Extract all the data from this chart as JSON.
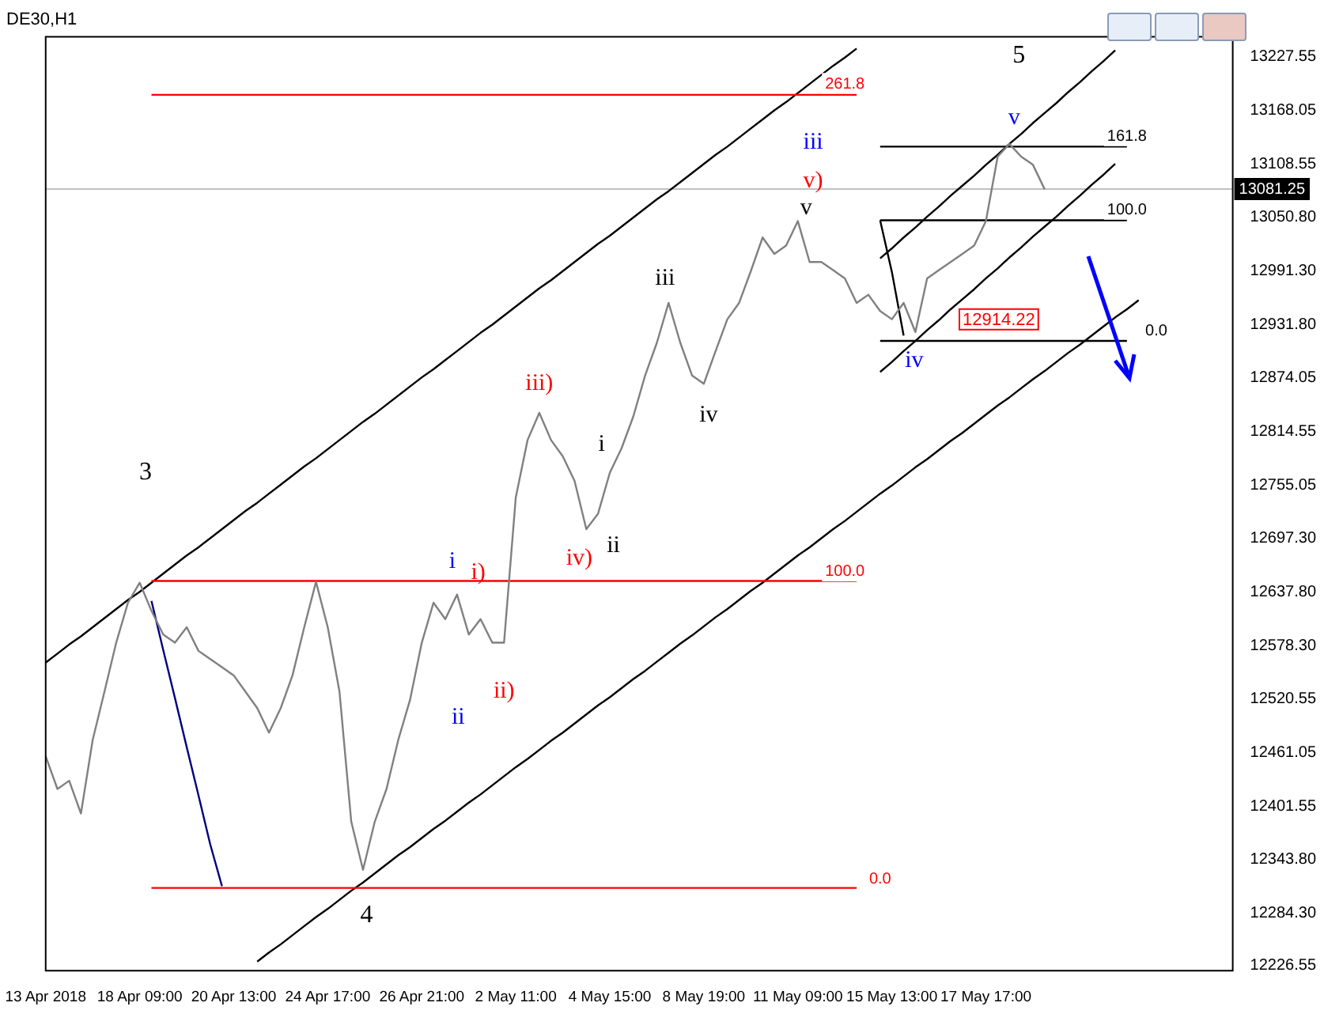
{
  "chart_data": {
    "type": "line",
    "title": "DE30,H1",
    "categories": [
      "13 Apr 2018",
      null,
      null,
      null,
      null,
      null,
      null,
      null,
      "18 Apr 09:00",
      null,
      null,
      null,
      null,
      null,
      null,
      null,
      "20 Apr 13:00",
      null,
      null,
      null,
      null,
      null,
      null,
      null,
      "24 Apr 17:00",
      null,
      null,
      null,
      null,
      null,
      null,
      null,
      "26 Apr 21:00",
      null,
      null,
      null,
      null,
      null,
      null,
      null,
      "2 May 11:00",
      null,
      null,
      null,
      null,
      null,
      null,
      null,
      "4 May 15:00",
      null,
      null,
      null,
      null,
      null,
      null,
      null,
      "8 May 19:00",
      null,
      null,
      null,
      null,
      null,
      null,
      null,
      "11 May 09:00",
      null,
      null,
      null,
      null,
      null,
      null,
      null,
      "15 May 13:00",
      null,
      null,
      null,
      null,
      null,
      null,
      null,
      "17 May 17:00",
      null,
      null,
      null,
      null,
      null,
      null,
      null,
      null,
      null,
      null,
      null,
      null,
      null,
      null,
      null,
      null,
      null,
      null,
      null,
      null,
      null
    ],
    "ylim": [
      12221,
      13249
    ],
    "yticks": [
      12226.55,
      {
        "value": 12284.3,
        "label": "12284.30"
      },
      {
        "value": 12343.8,
        "label": "12343.80"
      },
      12401.55,
      12461.05,
      12520.55,
      {
        "value": 12578.3,
        "label": "12578.30"
      },
      {
        "value": 12637.8,
        "label": "12637.80"
      },
      {
        "value": 12697.3,
        "label": "12697.30"
      },
      12755.05,
      12814.55,
      12874.05,
      {
        "value": 12931.8,
        "label": "12931.80"
      },
      {
        "value": 12991.3,
        "label": "12991.30"
      },
      {
        "value": 13050.8,
        "label": "13050.80"
      },
      13108.55,
      13168.05,
      13227.55
    ],
    "grid": false,
    "legend": false,
    "marker": "none",
    "series": [
      {
        "color": "#808080",
        "values": [
          12457,
          12421,
          12430,
          12394,
          12475,
          12528,
          12582,
          12626,
          12648,
          12617,
          12591,
          12582,
          12599,
          12573,
          12564,
          12555,
          12546,
          12528,
          12510,
          12483,
          12510,
          12546,
          12599,
          12649,
          12599,
          12528,
          12385,
          12332,
          12385,
          12421,
          12475,
          12519,
          12582,
          12626,
          12608,
          12635,
          12591,
          12608,
          12582,
          12582,
          12742,
          12805,
          12835,
          12805,
          12787,
          12760,
          12707,
          12724,
          12769,
          12796,
          12831,
          12876,
          12912,
          12956,
          12912,
          12876,
          12867,
          12903,
          12938,
          12956,
          12991,
          13028,
          13010,
          13019,
          13046,
          13001,
          13001,
          12992,
          12983,
          12956,
          12965,
          12947,
          12938,
          12956,
          12924,
          12983,
          12992,
          13001,
          13010,
          13019,
          13046,
          13117,
          13131,
          13117,
          13108,
          13081,
          null,
          null,
          null,
          null,
          null,
          null,
          null,
          null,
          null,
          null,
          null,
          null,
          null,
          null,
          null,
          null
        ]
      },
      {
        "color": "#ff0000",
        "values": [
          null,
          null,
          null,
          null,
          null,
          null,
          null,
          null,
          null,
          13185,
          13185,
          13185,
          13185,
          13185,
          13185,
          13185,
          13185,
          13185,
          13185,
          13185,
          13185,
          13185,
          13185,
          13185,
          13185,
          13185,
          13185,
          13185,
          13185,
          13185,
          13185,
          13185,
          13185,
          13185,
          13185,
          13185,
          13185,
          13185,
          13185,
          13185,
          13185,
          13185,
          13185,
          13185,
          13185,
          13185,
          13185,
          13185,
          13185,
          13185,
          13185,
          13185,
          13185,
          13185,
          13185,
          13185,
          13185,
          13185,
          13185,
          13185,
          13185,
          13185,
          13185,
          13185,
          13185,
          13185,
          13185,
          13185,
          13185,
          13185,
          null,
          null,
          null,
          null,
          null,
          null,
          null,
          null,
          null,
          null,
          null,
          null,
          null,
          null,
          null,
          null,
          null,
          null,
          null,
          null,
          null,
          null,
          null,
          null,
          null,
          null,
          null,
          null,
          null,
          null,
          null,
          null
        ]
      },
      {
        "color": "#ff0000",
        "values": [
          null,
          null,
          null,
          null,
          null,
          null,
          null,
          null,
          null,
          12650,
          12650,
          12650,
          12650,
          12650,
          12650,
          12650,
          12650,
          12650,
          12650,
          12650,
          12650,
          12650,
          12650,
          12650,
          12650,
          12650,
          12650,
          12650,
          12650,
          12650,
          12650,
          12650,
          12650,
          12650,
          12650,
          12650,
          12650,
          12650,
          12650,
          12650,
          12650,
          12650,
          12650,
          12650,
          12650,
          12650,
          12650,
          12650,
          12650,
          12650,
          12650,
          12650,
          12650,
          12650,
          12650,
          12650,
          12650,
          12650,
          12650,
          12650,
          12650,
          12650,
          12650,
          12650,
          12650,
          12650,
          12650,
          12650,
          12650,
          12650,
          null,
          null,
          null,
          null,
          null,
          null,
          null,
          null,
          null,
          null,
          null,
          null,
          null,
          null,
          null,
          null,
          null,
          null,
          null,
          null,
          null,
          null,
          null,
          null,
          null,
          null,
          null,
          null,
          null,
          null,
          null,
          null
        ]
      },
      {
        "color": "#ff0000",
        "values": [
          null,
          null,
          null,
          null,
          null,
          null,
          null,
          null,
          null,
          12312,
          12312,
          12312,
          12312,
          12312,
          12312,
          12312,
          12312,
          12312,
          12312,
          12312,
          12312,
          12312,
          12312,
          12312,
          12312,
          12312,
          12312,
          12312,
          12312,
          12312,
          12312,
          12312,
          12312,
          12312,
          12312,
          12312,
          12312,
          12312,
          12312,
          12312,
          12312,
          12312,
          12312,
          12312,
          12312,
          12312,
          12312,
          12312,
          12312,
          12312,
          12312,
          12312,
          12312,
          12312,
          12312,
          12312,
          12312,
          12312,
          12312,
          12312,
          12312,
          12312,
          12312,
          12312,
          12312,
          12312,
          12312,
          12312,
          12312,
          12312,
          null,
          null,
          null,
          null,
          null,
          null,
          null,
          null,
          null,
          null,
          null,
          null,
          null,
          null,
          null,
          null,
          null,
          null,
          null,
          null,
          null,
          null,
          null,
          null,
          null,
          null,
          null,
          null,
          null,
          null,
          null,
          null
        ]
      },
      {
        "color": "#000000",
        "values": [
          null,
          null,
          null,
          null,
          null,
          null,
          null,
          null,
          null,
          null,
          null,
          null,
          null,
          null,
          null,
          null,
          null,
          null,
          null,
          null,
          null,
          null,
          null,
          null,
          null,
          null,
          null,
          null,
          null,
          null,
          null,
          null,
          null,
          null,
          null,
          null,
          null,
          null,
          null,
          null,
          null,
          null,
          null,
          null,
          null,
          null,
          null,
          null,
          null,
          null,
          null,
          null,
          null,
          null,
          null,
          null,
          null,
          null,
          null,
          null,
          null,
          null,
          null,
          null,
          null,
          null,
          null,
          null,
          null,
          null,
          null,
          13128,
          13128,
          13128,
          13128,
          13128,
          13128,
          13128,
          13128,
          13128,
          13128,
          13128,
          13128,
          13128,
          13128,
          13128,
          13128,
          13128,
          13128,
          13128,
          13128,
          13128,
          13128,
          null,
          null,
          null,
          null,
          null,
          null,
          null,
          null,
          null
        ]
      },
      {
        "color": "#000000",
        "values": [
          null,
          null,
          null,
          null,
          null,
          null,
          null,
          null,
          null,
          null,
          null,
          null,
          null,
          null,
          null,
          null,
          null,
          null,
          null,
          null,
          null,
          null,
          null,
          null,
          null,
          null,
          null,
          null,
          null,
          null,
          null,
          null,
          null,
          null,
          null,
          null,
          null,
          null,
          null,
          null,
          null,
          null,
          null,
          null,
          null,
          null,
          null,
          null,
          null,
          null,
          null,
          null,
          null,
          null,
          null,
          null,
          null,
          null,
          null,
          null,
          null,
          null,
          null,
          null,
          null,
          null,
          null,
          null,
          null,
          null,
          null,
          13047,
          13047,
          13047,
          13047,
          13047,
          13047,
          13047,
          13047,
          13047,
          13047,
          13047,
          13047,
          13047,
          13047,
          13047,
          13047,
          13047,
          13047,
          13047,
          13047,
          13047,
          13047,
          null,
          null,
          null,
          null,
          null,
          null,
          null,
          null,
          null
        ]
      },
      {
        "color": "#000000",
        "values": [
          null,
          null,
          null,
          null,
          null,
          null,
          null,
          null,
          null,
          null,
          null,
          null,
          null,
          null,
          null,
          null,
          null,
          null,
          null,
          null,
          null,
          null,
          null,
          null,
          null,
          null,
          null,
          null,
          null,
          null,
          null,
          null,
          null,
          null,
          null,
          null,
          null,
          null,
          null,
          null,
          null,
          null,
          null,
          null,
          null,
          null,
          null,
          null,
          null,
          null,
          null,
          null,
          null,
          null,
          null,
          null,
          null,
          null,
          null,
          null,
          null,
          null,
          null,
          null,
          null,
          null,
          null,
          null,
          null,
          null,
          null,
          12914.22,
          12914.22,
          12914.22,
          12914.22,
          12914.22,
          12914.22,
          12914.22,
          12914.22,
          12914.22,
          12914.22,
          12914.22,
          12914.22,
          12914.22,
          12914.22,
          12914.22,
          12914.22,
          12914.22,
          12914.22,
          12914.22,
          12914.22,
          12914.22,
          12914.22,
          null,
          null,
          null,
          null,
          null,
          null,
          null,
          null,
          null
        ]
      },
      {
        "color": "#000000",
        "values": [
          12560,
          12570,
          12580,
          12589,
          12599,
          12609,
          12619,
          12629,
          12638,
          12648,
          12658,
          12668,
          12678,
          12687,
          12697,
          12707,
          12717,
          12727,
          12736,
          12746,
          12756,
          12766,
          12776,
          12785,
          12795,
          12805,
          12815,
          12825,
          12834,
          12844,
          12854,
          12864,
          12874,
          12883,
          12893,
          12903,
          12913,
          12923,
          12932,
          12942,
          12952,
          12962,
          12972,
          12981,
          12991,
          13001,
          13011,
          13021,
          13030,
          13040,
          13050,
          13060,
          13070,
          13079,
          13089,
          13099,
          13109,
          13119,
          13128,
          13138,
          13148,
          13158,
          13168,
          13177,
          13187,
          13197,
          13207,
          13217,
          13226,
          13236,
          null,
          null,
          null,
          null,
          null,
          null,
          null,
          null,
          null,
          null,
          null,
          null,
          null,
          null,
          null,
          null,
          null,
          null,
          null,
          null,
          null,
          null,
          null,
          null,
          null,
          null,
          null,
          null,
          null,
          null,
          null,
          null
        ]
      },
      {
        "color": "#000000",
        "values": [
          null,
          null,
          null,
          null,
          null,
          null,
          null,
          null,
          null,
          null,
          null,
          null,
          null,
          null,
          null,
          null,
          null,
          null,
          12231,
          12241,
          12250,
          12260,
          12270,
          12280,
          12289,
          12299,
          12309,
          12318,
          12328,
          12338,
          12348,
          12357,
          12367,
          12377,
          12386,
          12396,
          12406,
          12415,
          12425,
          12435,
          12445,
          12454,
          12464,
          12474,
          12483,
          12493,
          12503,
          12513,
          12522,
          12532,
          12542,
          12551,
          12561,
          12571,
          12581,
          12590,
          12600,
          12610,
          12619,
          12629,
          12639,
          12648,
          12658,
          12668,
          12678,
          12687,
          12697,
          12707,
          12716,
          12726,
          12736,
          12746,
          12755,
          12765,
          12775,
          12784,
          12794,
          12804,
          12813,
          12823,
          12833,
          12843,
          12852,
          12862,
          12872,
          12881,
          12891,
          12901,
          12910,
          12920,
          12930,
          12940,
          12949,
          12959,
          null,
          null,
          null,
          null,
          null,
          null,
          null,
          null
        ]
      },
      {
        "color": "#000000",
        "values": [
          null,
          null,
          null,
          null,
          null,
          null,
          null,
          null,
          null,
          null,
          null,
          null,
          null,
          null,
          null,
          null,
          null,
          null,
          null,
          null,
          null,
          null,
          null,
          null,
          null,
          null,
          null,
          null,
          null,
          null,
          null,
          null,
          null,
          null,
          null,
          null,
          null,
          null,
          null,
          null,
          null,
          null,
          null,
          null,
          null,
          null,
          null,
          null,
          null,
          null,
          null,
          null,
          null,
          null,
          null,
          null,
          null,
          null,
          null,
          null,
          null,
          null,
          null,
          null,
          null,
          null,
          null,
          null,
          null,
          null,
          null,
          13005,
          13016,
          13028,
          13039,
          13051,
          13062,
          13074,
          13085,
          13096,
          13108,
          13119,
          13131,
          13142,
          13154,
          13165,
          13176,
          13188,
          13199,
          13211,
          13222,
          13234,
          null,
          null,
          null,
          null,
          null,
          null,
          null,
          null,
          null,
          null
        ]
      },
      {
        "color": "#000000",
        "values": [
          null,
          null,
          null,
          null,
          null,
          null,
          null,
          null,
          null,
          null,
          null,
          null,
          null,
          null,
          null,
          null,
          null,
          null,
          null,
          null,
          null,
          null,
          null,
          null,
          null,
          null,
          null,
          null,
          null,
          null,
          null,
          null,
          null,
          null,
          null,
          null,
          null,
          null,
          null,
          null,
          null,
          null,
          null,
          null,
          null,
          null,
          null,
          null,
          null,
          null,
          null,
          null,
          null,
          null,
          null,
          null,
          null,
          null,
          null,
          null,
          null,
          null,
          null,
          null,
          null,
          null,
          null,
          null,
          null,
          null,
          null,
          12880,
          12891,
          12903,
          12914,
          12926,
          12937,
          12949,
          12960,
          12971,
          12983,
          12994,
          13006,
          13017,
          13029,
          13040,
          13051,
          13063,
          13074,
          13086,
          13097,
          13109,
          null,
          null,
          null,
          null,
          null,
          null,
          null,
          null,
          null,
          null
        ]
      },
      {
        "color": "#000000",
        "values": [
          null,
          null,
          null,
          null,
          null,
          null,
          null,
          null,
          null,
          null,
          null,
          null,
          null,
          null,
          null,
          null,
          null,
          null,
          null,
          null,
          null,
          null,
          null,
          null,
          null,
          null,
          null,
          null,
          null,
          null,
          null,
          null,
          null,
          null,
          null,
          null,
          null,
          null,
          null,
          null,
          null,
          null,
          null,
          null,
          null,
          null,
          null,
          null,
          null,
          null,
          null,
          null,
          null,
          null,
          null,
          null,
          null,
          null,
          null,
          null,
          null,
          null,
          null,
          null,
          null,
          null,
          null,
          null,
          null,
          null,
          null,
          13047,
          12990,
          12920,
          null,
          null,
          null,
          null,
          null,
          null,
          null,
          null,
          null,
          null,
          null,
          null,
          null,
          null,
          null,
          null,
          null,
          null,
          null,
          null,
          null,
          null,
          null,
          null,
          null,
          null,
          null,
          null
        ]
      },
      {
        "color": "#000080",
        "values": [
          null,
          null,
          null,
          null,
          null,
          null,
          null,
          null,
          null,
          12628,
          12574,
          12521,
          12467,
          12414,
          12360,
          12314,
          null,
          null,
          null,
          null,
          null,
          null,
          null,
          null,
          null,
          null,
          null,
          null,
          null,
          null,
          null,
          null,
          null,
          null,
          null,
          null,
          null,
          null,
          null,
          null,
          null,
          null,
          null,
          null,
          null,
          null,
          null,
          null,
          null,
          null,
          null,
          null,
          null,
          null,
          null,
          null,
          null,
          null,
          null,
          null,
          null,
          null,
          null,
          null,
          null,
          null,
          null,
          null,
          null,
          null,
          null,
          null,
          null,
          null,
          null,
          null,
          null,
          null,
          null,
          null,
          null,
          null,
          null,
          null,
          null,
          null,
          null,
          null,
          null,
          null,
          null,
          null,
          null,
          null,
          null,
          null,
          null,
          null,
          null,
          null,
          null,
          null
        ]
      }
    ],
    "ref_lines": [
      {
        "axis": "y",
        "value": 13081.25,
        "label": "13081.25",
        "color": "#c0c0c0"
      }
    ],
    "annotations": [
      "3",
      "4",
      "5",
      "i",
      "ii",
      "iii",
      "iv",
      "v",
      "i)",
      "ii)",
      "iii)",
      "iv)",
      "v)",
      "i",
      "ii",
      "iii",
      "iv",
      "v",
      "261.8",
      "100.0",
      "0.0",
      "161.8",
      "100.0",
      "0.0",
      "12914.22"
    ]
  }
}
